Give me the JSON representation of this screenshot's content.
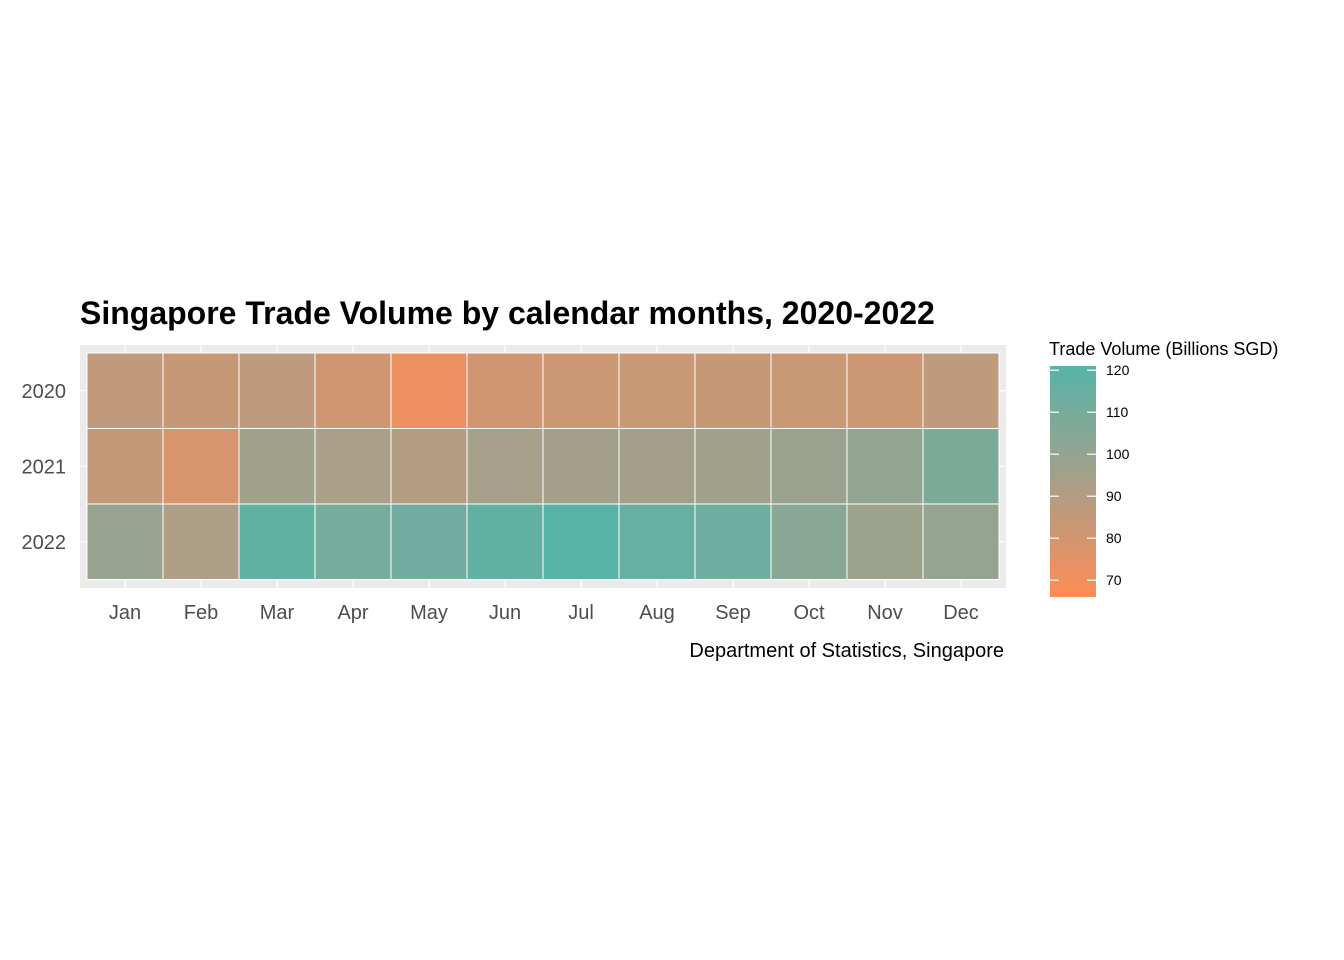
{
  "chart_data": {
    "type": "heatmap",
    "title": "Singapore Trade Volume by calendar months, 2020-2022",
    "caption": "Department of Statistics, Singapore",
    "x_categories": [
      "Jan",
      "Feb",
      "Mar",
      "Apr",
      "May",
      "Jun",
      "Jul",
      "Aug",
      "Sep",
      "Oct",
      "Nov",
      "Dec"
    ],
    "y_categories": [
      "2020",
      "2021",
      "2022"
    ],
    "values": [
      [
        86,
        84,
        87,
        81,
        72,
        81,
        82,
        83,
        84,
        83,
        82,
        87
      ],
      [
        85,
        79,
        96,
        93,
        90,
        94,
        95,
        95,
        96,
        98,
        101,
        108
      ],
      [
        99,
        92,
        117,
        110,
        112,
        117,
        120,
        115,
        113,
        104,
        97,
        100
      ]
    ],
    "legend": {
      "title": "Trade Volume (Billions SGD)",
      "ticks": [
        70,
        80,
        90,
        100,
        110,
        120
      ],
      "range": [
        66,
        121
      ],
      "low_color": "#ff8c55",
      "mid_color": "#a89f88",
      "high_color": "#55b4a8",
      "placement": "right"
    },
    "panel_background": "#ebebeb",
    "tile_border_color": "#ffffff"
  }
}
